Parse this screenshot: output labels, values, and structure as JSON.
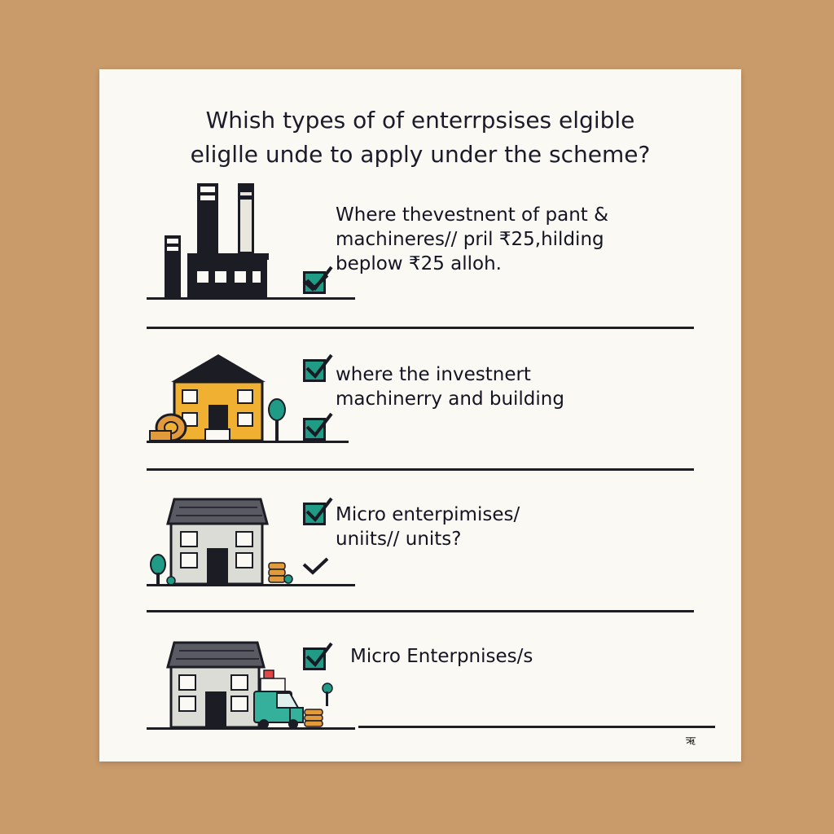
{
  "question": {
    "line1": "Whish types of of enterrpsises elgible",
    "line2": "eliglle unde to apply under the scheme?"
  },
  "options": [
    {
      "lines": [
        "Where thevestnent of pant &",
        "machineres// pril ₹25,hilding",
        "beplow ₹25 alloh."
      ],
      "illustration": "factory-icon"
    },
    {
      "lines": [
        "where the investnert",
        "machinerry and building"
      ],
      "illustration": "house-icon"
    },
    {
      "lines": [
        "Micro enterpimises/",
        "uniits// units?"
      ],
      "illustration": "house-icon"
    },
    {
      "lines": [
        "Micro Enterpnises/s"
      ],
      "illustration": "house-with-truck-icon"
    }
  ],
  "corner_mark": "ऋ",
  "colors": {
    "background": "#c99a6a",
    "card": "#fbf9f3",
    "check_fill": "#1f9b86",
    "ink": "#1e1e28",
    "house_yellow": "#f0b132",
    "house_gray": "#dcdcd6",
    "truck": "#35b09a",
    "coins": "#e39a3a"
  }
}
